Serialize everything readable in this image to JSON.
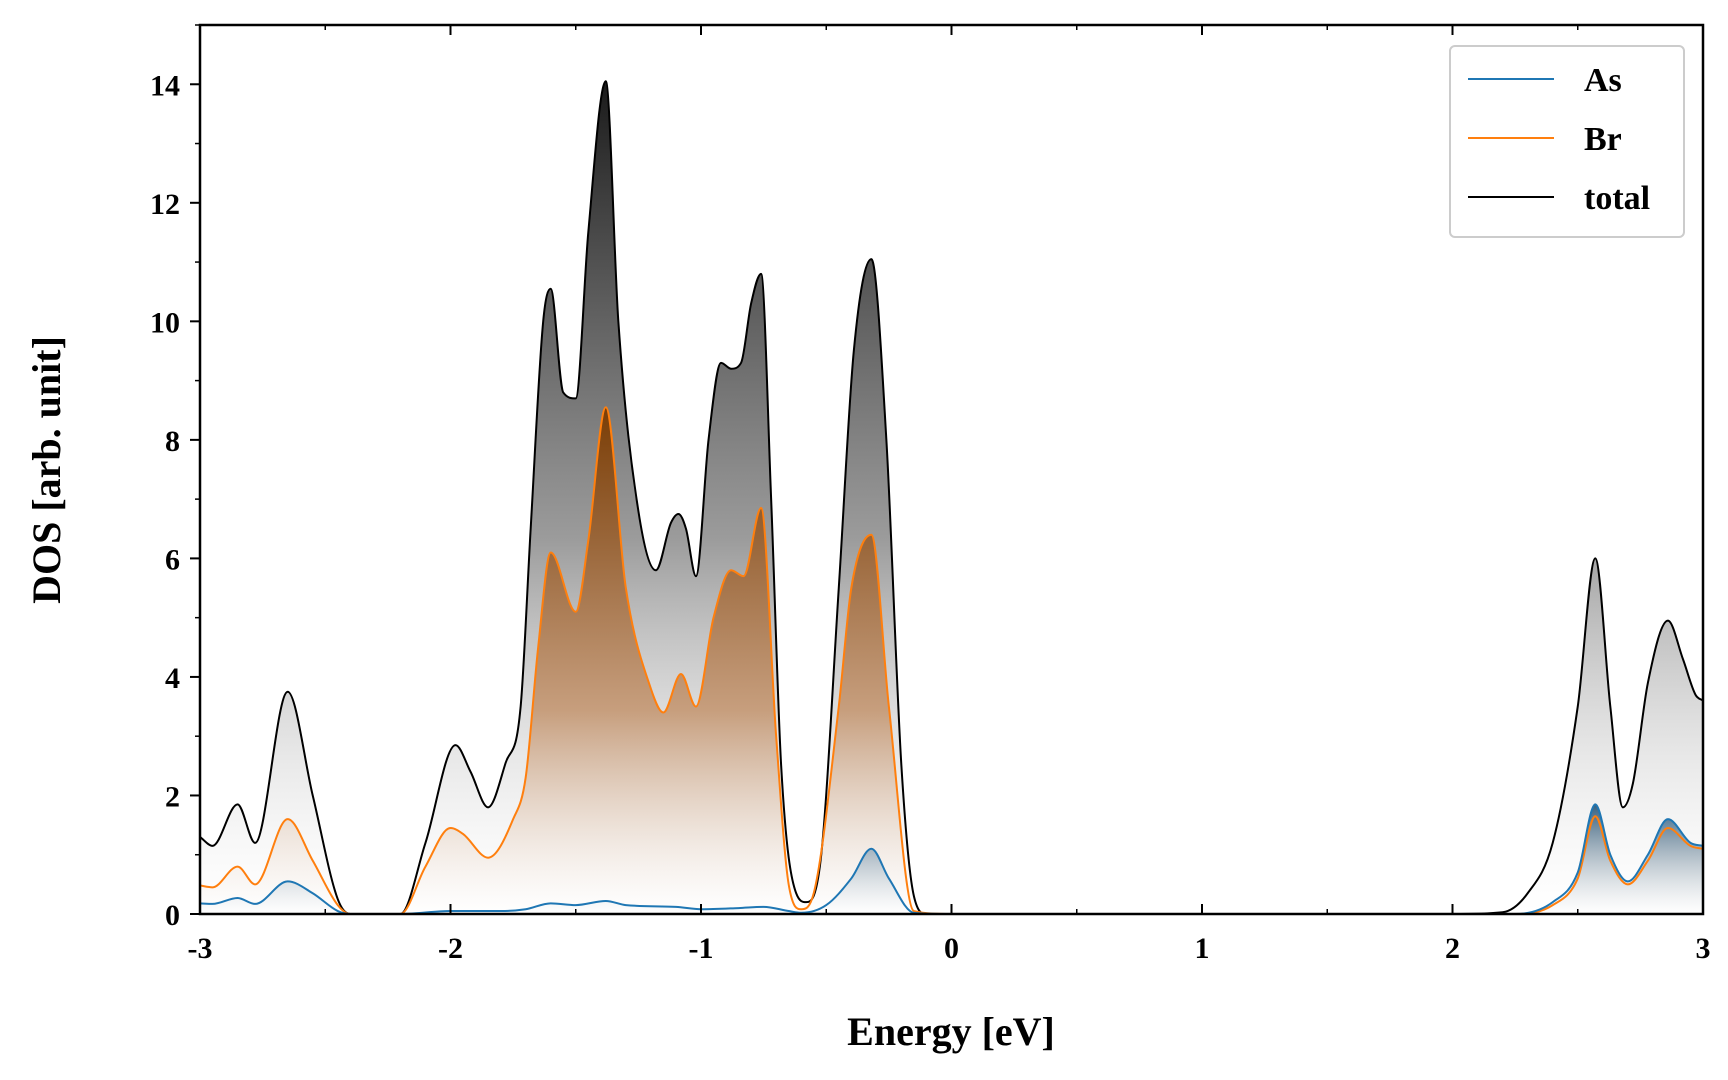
{
  "chart_data": {
    "type": "area",
    "xlabel": "Energy [eV]",
    "ylabel": "DOS [arb. unit]",
    "xlim": [
      -3,
      3
    ],
    "ylim": [
      0,
      15
    ],
    "xticks": [
      -3,
      -2,
      -1,
      0,
      1,
      2,
      3
    ],
    "xtick_labels": [
      "-3",
      "-2",
      "-1",
      "0",
      "1",
      "2",
      "3"
    ],
    "yticks": [
      0,
      2,
      4,
      6,
      8,
      10,
      12,
      14
    ],
    "ytick_labels": [
      "0",
      "2",
      "4",
      "6",
      "8",
      "10",
      "12",
      "14"
    ],
    "grid": false,
    "legend_position": "top-right",
    "series": [
      {
        "name": "As",
        "color": "#1f77b4",
        "x": [
          -3.0,
          -2.95,
          -2.85,
          -2.78,
          -2.65,
          -2.55,
          -2.45,
          -2.4,
          -2.2,
          -2.0,
          -1.8,
          -1.7,
          -1.6,
          -1.5,
          -1.38,
          -1.3,
          -1.1,
          -1.0,
          -0.85,
          -0.75,
          -0.65,
          -0.6,
          -0.5,
          -0.4,
          -0.32,
          -0.25,
          -0.15,
          0.0,
          1.0,
          2.0,
          2.25,
          2.4,
          2.5,
          2.57,
          2.63,
          2.7,
          2.78,
          2.86,
          2.95,
          3.0
        ],
        "values": [
          0.18,
          0.17,
          0.27,
          0.17,
          0.55,
          0.35,
          0.05,
          0.0,
          0.0,
          0.05,
          0.05,
          0.08,
          0.18,
          0.15,
          0.22,
          0.15,
          0.12,
          0.08,
          0.1,
          0.12,
          0.05,
          0.02,
          0.15,
          0.6,
          1.1,
          0.6,
          0.02,
          0.0,
          0.0,
          0.0,
          0.0,
          0.2,
          0.7,
          1.85,
          1.0,
          0.55,
          1.0,
          1.6,
          1.2,
          1.15
        ]
      },
      {
        "name": "Br",
        "color": "#ff7f0e",
        "x": [
          -3.0,
          -2.95,
          -2.85,
          -2.78,
          -2.65,
          -2.55,
          -2.45,
          -2.4,
          -2.2,
          -2.1,
          -2.0,
          -1.95,
          -1.85,
          -1.75,
          -1.7,
          -1.65,
          -1.6,
          -1.5,
          -1.45,
          -1.38,
          -1.3,
          -1.2,
          -1.15,
          -1.08,
          -1.02,
          -0.95,
          -0.88,
          -0.83,
          -0.76,
          -0.7,
          -0.65,
          -0.6,
          -0.55,
          -0.45,
          -0.4,
          -0.32,
          -0.25,
          -0.15,
          0.0,
          1.0,
          2.0,
          2.25,
          2.4,
          2.5,
          2.57,
          2.63,
          2.7,
          2.78,
          2.86,
          2.95,
          3.0
        ],
        "values": [
          0.48,
          0.45,
          0.8,
          0.5,
          1.6,
          0.9,
          0.15,
          0.0,
          0.0,
          0.8,
          1.45,
          1.35,
          0.95,
          1.6,
          2.3,
          4.5,
          6.1,
          5.1,
          6.3,
          8.55,
          5.5,
          3.8,
          3.4,
          4.05,
          3.5,
          5.0,
          5.8,
          5.7,
          6.85,
          3.0,
          0.5,
          0.08,
          0.35,
          3.5,
          5.5,
          6.4,
          3.5,
          0.05,
          0.0,
          0.0,
          0.0,
          0.0,
          0.15,
          0.6,
          1.65,
          0.9,
          0.5,
          0.9,
          1.45,
          1.15,
          1.1
        ]
      },
      {
        "name": "total",
        "color": "#000000",
        "x": [
          -3.0,
          -2.95,
          -2.85,
          -2.78,
          -2.65,
          -2.55,
          -2.45,
          -2.4,
          -2.2,
          -2.1,
          -1.98,
          -1.92,
          -1.85,
          -1.78,
          -1.72,
          -1.68,
          -1.63,
          -1.6,
          -1.55,
          -1.5,
          -1.45,
          -1.38,
          -1.33,
          -1.25,
          -1.18,
          -1.12,
          -1.09,
          -1.06,
          -1.02,
          -0.97,
          -0.92,
          -0.88,
          -0.84,
          -0.8,
          -0.76,
          -0.72,
          -0.68,
          -0.62,
          -0.58,
          -0.52,
          -0.45,
          -0.39,
          -0.32,
          -0.26,
          -0.2,
          -0.15,
          -0.1,
          0.0,
          1.0,
          2.0,
          2.2,
          2.3,
          2.4,
          2.5,
          2.57,
          2.63,
          2.68,
          2.72,
          2.78,
          2.86,
          2.92,
          2.97,
          3.0
        ],
        "values": [
          1.3,
          1.15,
          1.85,
          1.2,
          3.75,
          2.0,
          0.25,
          0.0,
          0.0,
          1.2,
          2.85,
          2.4,
          1.8,
          2.55,
          3.5,
          6.5,
          10.0,
          10.55,
          8.8,
          8.7,
          11.5,
          14.05,
          10.0,
          6.8,
          5.8,
          6.6,
          6.75,
          6.5,
          5.7,
          8.0,
          9.3,
          9.2,
          9.3,
          10.3,
          10.8,
          7.0,
          2.5,
          0.35,
          0.2,
          1.0,
          5.5,
          9.5,
          11.05,
          8.0,
          2.5,
          0.3,
          0.0,
          0.0,
          0.0,
          0.0,
          0.03,
          0.35,
          1.2,
          3.5,
          6.0,
          3.5,
          1.8,
          2.2,
          3.9,
          4.95,
          4.3,
          3.7,
          3.6
        ]
      }
    ]
  }
}
